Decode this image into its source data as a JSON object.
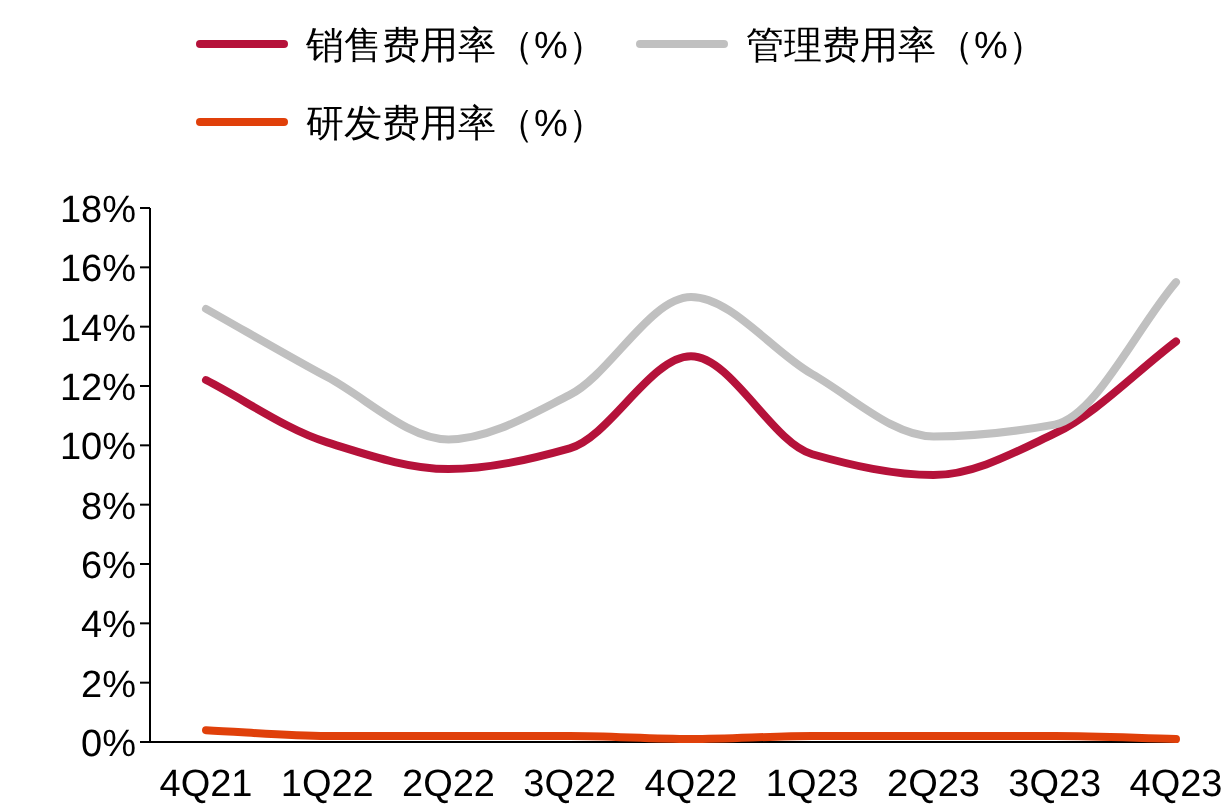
{
  "chart_data": {
    "type": "line",
    "categories": [
      "4Q21",
      "1Q22",
      "2Q22",
      "3Q22",
      "4Q22",
      "1Q23",
      "2Q23",
      "3Q23",
      "4Q23"
    ],
    "series": [
      {
        "name": "销售费用率（%）",
        "color": "#b5123a",
        "values": [
          12.2,
          10.1,
          9.2,
          9.9,
          13.0,
          9.7,
          9.0,
          10.4,
          13.5
        ]
      },
      {
        "name": "管理费用率（%）",
        "color": "#c0c0c0",
        "values": [
          14.6,
          12.3,
          10.2,
          11.7,
          15.0,
          12.4,
          10.3,
          10.7,
          15.5
        ]
      },
      {
        "name": "研发费用率（%）",
        "color": "#e0400a",
        "values": [
          0.4,
          0.2,
          0.2,
          0.2,
          0.1,
          0.2,
          0.2,
          0.2,
          0.1
        ]
      }
    ],
    "ylim": [
      0,
      18
    ],
    "yticks": [
      {
        "value": 0,
        "label": "0%"
      },
      {
        "value": 2,
        "label": "2%"
      },
      {
        "value": 4,
        "label": "4%"
      },
      {
        "value": 6,
        "label": "6%"
      },
      {
        "value": 8,
        "label": "8%"
      },
      {
        "value": 10,
        "label": "10%"
      },
      {
        "value": 12,
        "label": "12%"
      },
      {
        "value": 14,
        "label": "14%"
      },
      {
        "value": 16,
        "label": "16%"
      },
      {
        "value": 18,
        "label": "18%"
      }
    ],
    "grid": false,
    "legend": "top",
    "marker": "none",
    "line_style": "solid"
  }
}
